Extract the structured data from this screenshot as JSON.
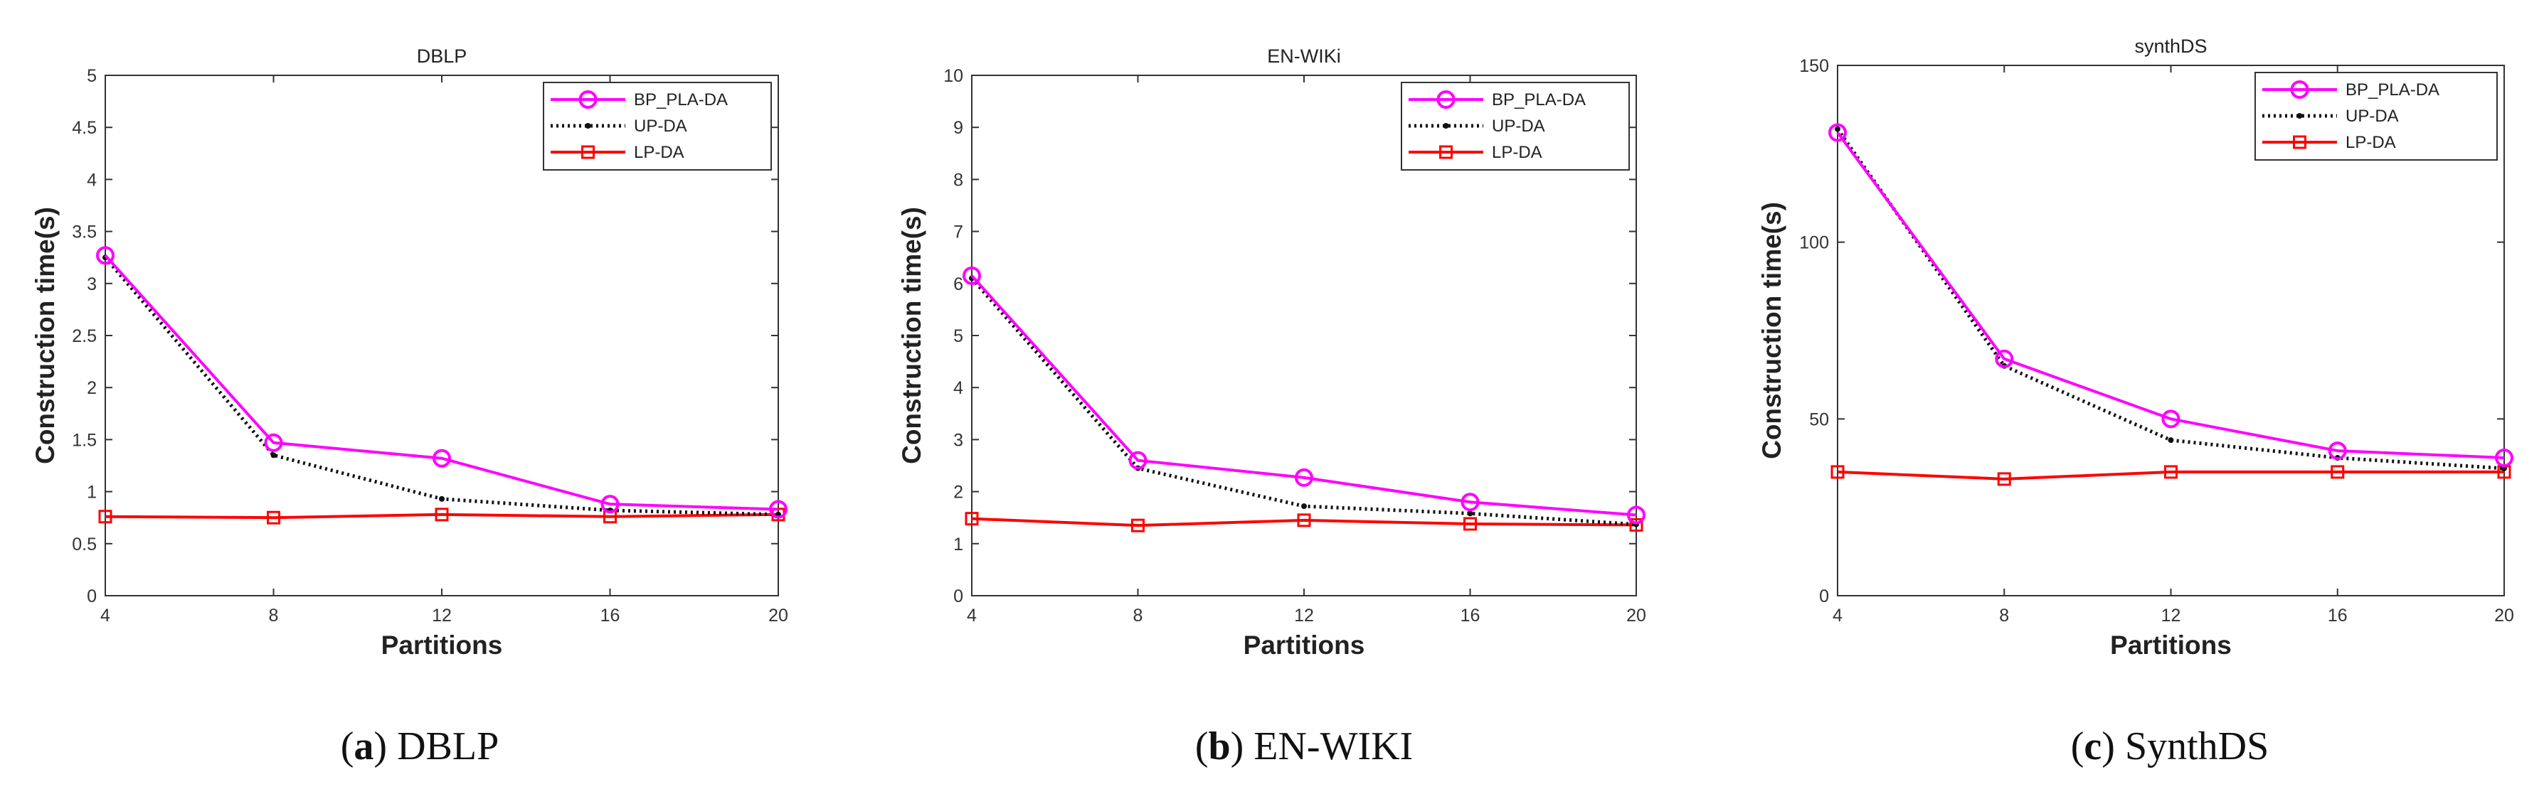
{
  "chart_data": [
    {
      "type": "line",
      "title": "DBLP",
      "xlabel": "Partitions",
      "ylabel": "Construction time(s)",
      "x": [
        4,
        8,
        12,
        16,
        20
      ],
      "xticks": [
        "4",
        "8",
        "12",
        "16",
        "20"
      ],
      "xlim": [
        4,
        20
      ],
      "ylim": [
        0,
        5
      ],
      "yticks": [
        "0",
        "0.5",
        "1",
        "1.5",
        "2",
        "2.5",
        "3",
        "3.5",
        "4",
        "4.5",
        "5"
      ],
      "ytick_values": [
        0,
        0.5,
        1,
        1.5,
        2,
        2.5,
        3,
        3.5,
        4,
        4.5,
        5
      ],
      "legend_position": "top-right",
      "series": [
        {
          "name": "BP_PLA-DA",
          "values": [
            3.27,
            1.47,
            1.32,
            0.88,
            0.83
          ],
          "color": "#ff00ff",
          "marker": "circle",
          "style": "solid"
        },
        {
          "name": "UP-DA",
          "values": [
            3.25,
            1.35,
            0.93,
            0.82,
            0.78
          ],
          "color": "#111111",
          "marker": "dot",
          "style": "dotted"
        },
        {
          "name": "LP-DA",
          "values": [
            0.76,
            0.75,
            0.78,
            0.76,
            0.78
          ],
          "color": "#ff0000",
          "marker": "square",
          "style": "solid"
        }
      ],
      "caption_letter": "a",
      "caption_text": "DBLP"
    },
    {
      "type": "line",
      "title": "EN-WIKi",
      "xlabel": "Partitions",
      "ylabel": "Construction time(s)",
      "x": [
        4,
        8,
        12,
        16,
        20
      ],
      "xticks": [
        "4",
        "8",
        "12",
        "16",
        "20"
      ],
      "xlim": [
        4,
        20
      ],
      "ylim": [
        0,
        10
      ],
      "yticks": [
        "0",
        "1",
        "2",
        "3",
        "4",
        "5",
        "6",
        "7",
        "8",
        "9",
        "10"
      ],
      "ytick_values": [
        0,
        1,
        2,
        3,
        4,
        5,
        6,
        7,
        8,
        9,
        10
      ],
      "legend_position": "top-right",
      "series": [
        {
          "name": "BP_PLA-DA",
          "values": [
            6.15,
            2.6,
            2.27,
            1.8,
            1.55
          ],
          "color": "#ff00ff",
          "marker": "circle",
          "style": "solid"
        },
        {
          "name": "UP-DA",
          "values": [
            6.1,
            2.45,
            1.72,
            1.58,
            1.37
          ],
          "color": "#111111",
          "marker": "dot",
          "style": "dotted"
        },
        {
          "name": "LP-DA",
          "values": [
            1.48,
            1.35,
            1.45,
            1.38,
            1.36
          ],
          "color": "#ff0000",
          "marker": "square",
          "style": "solid"
        }
      ],
      "caption_letter": "b",
      "caption_text": "EN-WIKI"
    },
    {
      "type": "line",
      "title": "synthDS",
      "xlabel": "Partitions",
      "ylabel": "Construction time(s)",
      "x": [
        4,
        8,
        12,
        16,
        20
      ],
      "xticks": [
        "4",
        "8",
        "12",
        "16",
        "20"
      ],
      "xlim": [
        4,
        20
      ],
      "ylim": [
        0,
        150
      ],
      "yticks": [
        "0",
        "50",
        "100",
        "150"
      ],
      "ytick_values": [
        0,
        50,
        100,
        150
      ],
      "legend_position": "top-right",
      "series": [
        {
          "name": "BP_PLA-DA",
          "values": [
            131,
            67,
            50,
            41,
            39
          ],
          "color": "#ff00ff",
          "marker": "circle",
          "style": "solid"
        },
        {
          "name": "UP-DA",
          "values": [
            132,
            65,
            44,
            39,
            36
          ],
          "color": "#111111",
          "marker": "dot",
          "style": "dotted"
        },
        {
          "name": "LP-DA",
          "values": [
            35,
            33,
            35,
            35,
            35
          ],
          "color": "#ff0000",
          "marker": "square",
          "style": "solid"
        }
      ],
      "caption_letter": "c",
      "caption_text": "SynthDS"
    }
  ]
}
